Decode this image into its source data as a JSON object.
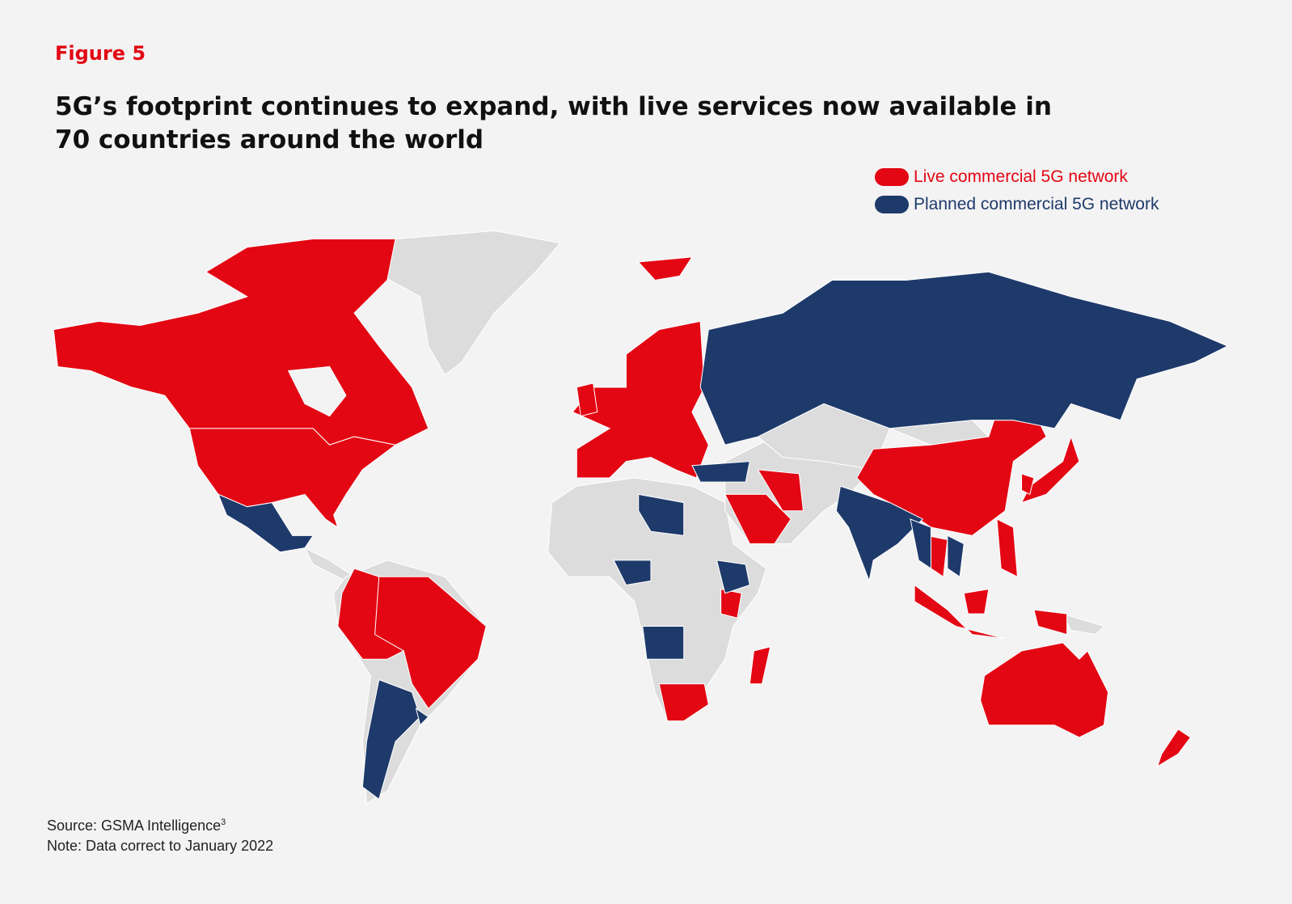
{
  "figure_label": "Figure 5",
  "title": "5G’s footprint continues to expand, with live services now available in 70 countries around the world",
  "legend": [
    {
      "label": "Live commercial 5G network",
      "color": "#e30613"
    },
    {
      "label": "Planned commercial 5G network",
      "color": "#1e3a6b"
    }
  ],
  "source": "Source: GSMA Intelligence",
  "source_superscript": "3",
  "note": "Note: Data correct to January 2022"
}
